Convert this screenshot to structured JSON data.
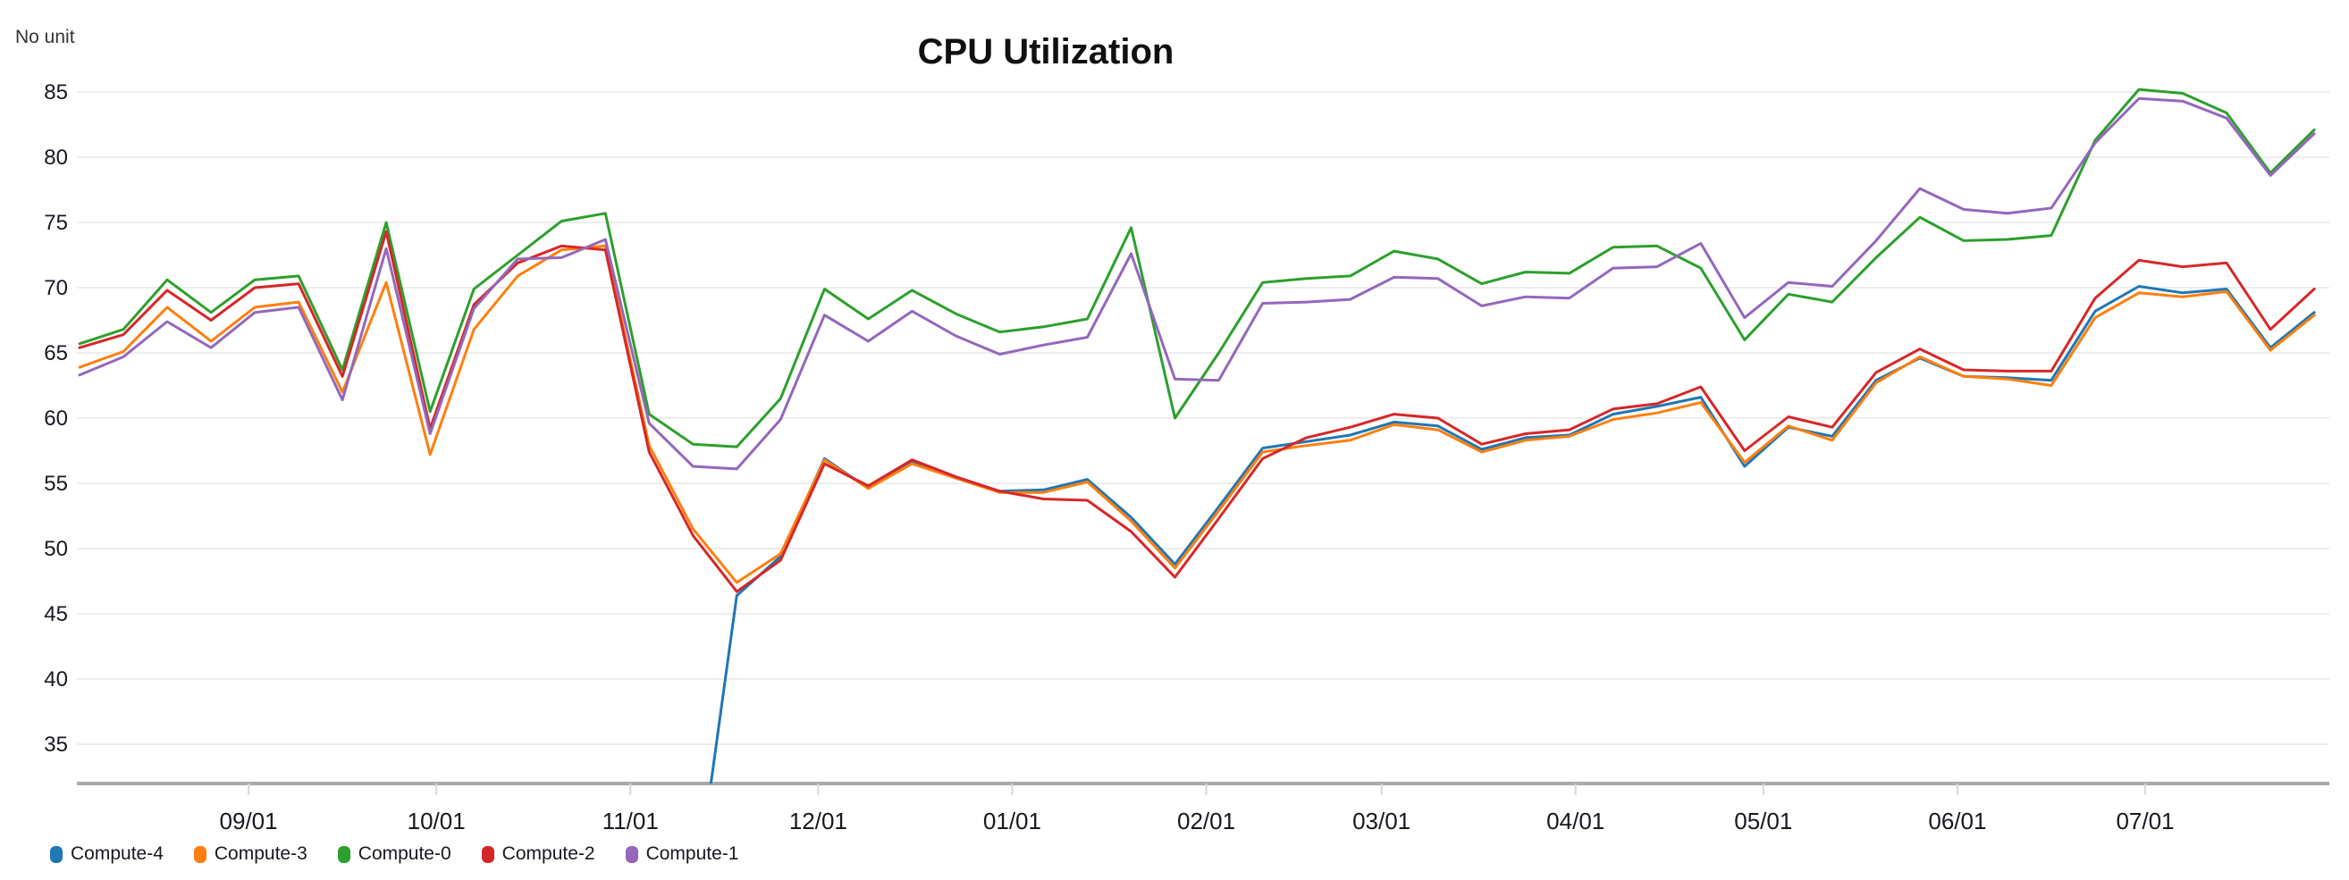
{
  "header": {
    "title": "CPU Utilization",
    "unit_label": "No unit"
  },
  "colors": {
    "axis": "#a9a9a9",
    "gridline": "#ededed",
    "month_tick": "#d9d9d9",
    "text": "#16191f"
  },
  "chart_data": {
    "type": "line",
    "title": "CPU Utilization",
    "ylabel": "No unit",
    "ylim": [
      32,
      86
    ],
    "grid": "horizontal",
    "legend_position": "bottom-left",
    "y_axis": {
      "ticks": [
        85,
        80,
        75,
        70,
        65,
        60,
        55,
        50,
        45,
        40,
        35
      ]
    },
    "x_axis": {
      "unit": "days_since_first_point",
      "point_interval_days": 7,
      "ticks": [
        {
          "label": "09/01",
          "day": 27
        },
        {
          "label": "10/01",
          "day": 57
        },
        {
          "label": "11/01",
          "day": 88
        },
        {
          "label": "12/01",
          "day": 118
        },
        {
          "label": "01/01",
          "day": 149
        },
        {
          "label": "02/01",
          "day": 180
        },
        {
          "label": "03/01",
          "day": 208
        },
        {
          "label": "04/01",
          "day": 239
        },
        {
          "label": "05/01",
          "day": 269
        },
        {
          "label": "06/01",
          "day": 300
        },
        {
          "label": "07/01",
          "day": 330
        }
      ]
    },
    "series": [
      {
        "name": "Compute-4",
        "color": "#1f77b4",
        "values": [
          null,
          null,
          null,
          null,
          null,
          null,
          null,
          null,
          null,
          null,
          null,
          null,
          null,
          null,
          22.0,
          46.4,
          49.4,
          56.9,
          54.6,
          56.6,
          55.4,
          54.4,
          54.5,
          55.3,
          52.4,
          48.8,
          53.2,
          57.7,
          58.2,
          58.7,
          59.7,
          59.4,
          57.6,
          58.5,
          58.7,
          60.3,
          60.9,
          61.6,
          56.3,
          59.3,
          58.6,
          62.9,
          64.6,
          63.2,
          63.1,
          62.9,
          68.2,
          70.1,
          69.6,
          69.9,
          65.4,
          68.1
        ]
      },
      {
        "name": "Compute-3",
        "color": "#ff7f0e",
        "values": [
          63.9,
          65.1,
          68.5,
          65.9,
          68.5,
          68.9,
          62.0,
          70.4,
          57.2,
          66.8,
          70.9,
          72.9,
          73.2,
          57.9,
          51.5,
          47.4,
          49.6,
          56.8,
          54.6,
          56.5,
          55.4,
          54.3,
          54.3,
          55.1,
          52.1,
          48.5,
          52.9,
          57.4,
          57.9,
          58.3,
          59.5,
          59.1,
          57.4,
          58.3,
          58.6,
          59.9,
          60.4,
          61.2,
          56.6,
          59.4,
          58.3,
          62.7,
          64.7,
          63.2,
          63.0,
          62.5,
          67.7,
          69.6,
          69.3,
          69.7,
          65.2,
          67.9
        ]
      },
      {
        "name": "Compute-0",
        "color": "#2ca02c",
        "values": [
          65.7,
          66.8,
          70.6,
          68.1,
          70.6,
          70.9,
          63.7,
          75.0,
          60.5,
          69.9,
          72.5,
          75.1,
          75.7,
          60.3,
          58.0,
          57.8,
          61.5,
          69.9,
          67.6,
          69.8,
          68.0,
          66.6,
          67.0,
          67.6,
          74.6,
          60.0,
          65.0,
          70.4,
          70.7,
          70.9,
          72.8,
          72.2,
          70.3,
          71.2,
          71.1,
          73.1,
          73.2,
          71.5,
          66.0,
          69.5,
          68.9,
          72.3,
          75.4,
          73.6,
          73.7,
          74.0,
          81.3,
          85.2,
          84.9,
          83.4,
          78.8,
          82.1
        ]
      },
      {
        "name": "Compute-2",
        "color": "#d62728",
        "values": [
          65.4,
          66.4,
          69.8,
          67.5,
          70.0,
          70.3,
          63.2,
          74.3,
          59.2,
          68.7,
          71.9,
          73.2,
          72.9,
          57.4,
          51.0,
          46.7,
          49.1,
          56.5,
          54.8,
          56.8,
          55.5,
          54.4,
          53.8,
          53.7,
          51.3,
          47.8,
          52.3,
          56.9,
          58.5,
          59.3,
          60.3,
          60.0,
          58.0,
          58.8,
          59.1,
          60.7,
          61.1,
          62.4,
          57.5,
          60.1,
          59.3,
          63.5,
          65.3,
          63.7,
          63.6,
          63.6,
          69.2,
          72.1,
          71.6,
          71.9,
          66.8,
          69.9
        ]
      },
      {
        "name": "Compute-1",
        "color": "#9467bd",
        "values": [
          63.3,
          64.7,
          67.4,
          65.4,
          68.1,
          68.5,
          61.4,
          73.0,
          58.8,
          68.4,
          72.2,
          72.3,
          73.7,
          59.6,
          56.3,
          56.1,
          59.9,
          67.9,
          65.9,
          68.2,
          66.3,
          64.9,
          65.6,
          66.2,
          72.6,
          63.0,
          62.9,
          68.8,
          68.9,
          69.1,
          70.8,
          70.7,
          68.6,
          69.3,
          69.2,
          71.5,
          71.6,
          73.4,
          67.7,
          70.4,
          70.1,
          73.6,
          77.6,
          76.0,
          75.7,
          76.1,
          81.1,
          84.5,
          84.3,
          83.0,
          78.6,
          81.8
        ]
      }
    ]
  }
}
